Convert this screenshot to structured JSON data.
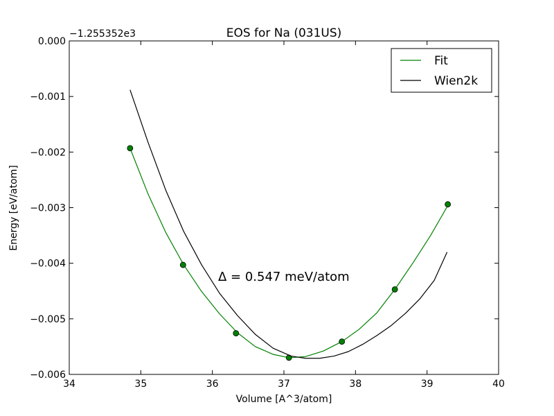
{
  "chart_data": {
    "type": "line",
    "title": "EOS for Na (031US)",
    "xlabel": "Volume [A^3/atom]",
    "ylabel": "Energy [eV/atom]",
    "y_offset_label": "−1.255352e3",
    "annotation": "Δ = 0.547 meV/atom",
    "xlim": [
      34,
      40
    ],
    "ylim": [
      -0.006,
      0.0
    ],
    "x_ticks": [
      "34",
      "35",
      "36",
      "37",
      "38",
      "39",
      "40"
    ],
    "y_ticks": [
      "0.000",
      "−0.001",
      "−0.002",
      "−0.003",
      "−0.004",
      "−0.005",
      "−0.006"
    ],
    "grid": false,
    "legend_position": "top-right",
    "series": [
      {
        "name": "Fit",
        "color": "#008000",
        "style": "line",
        "x": [
          34.85,
          35.1,
          35.35,
          35.6,
          35.85,
          36.1,
          36.35,
          36.6,
          36.85,
          37.07,
          37.3,
          37.55,
          37.81,
          38.05,
          38.3,
          38.55,
          38.8,
          39.05,
          39.3
        ],
        "y": [
          -0.00193,
          -0.00275,
          -0.00345,
          -0.00403,
          -0.00451,
          -0.00491,
          -0.00525,
          -0.0055,
          -0.00564,
          -0.0057,
          -0.00568,
          -0.00558,
          -0.00541,
          -0.00519,
          -0.00489,
          -0.00447,
          -0.004,
          -0.0035,
          -0.00294
        ]
      },
      {
        "name": "",
        "color": "#008000",
        "style": "markers",
        "x": [
          34.85,
          35.59,
          36.33,
          37.07,
          37.81,
          38.55,
          39.29
        ],
        "y": [
          -0.00193,
          -0.00403,
          -0.00526,
          -0.0057,
          -0.00541,
          -0.00447,
          -0.00294
        ]
      },
      {
        "name": "Wien2k",
        "color": "#000000",
        "style": "line",
        "x": [
          34.85,
          35.1,
          35.35,
          35.6,
          35.85,
          36.1,
          36.35,
          36.6,
          36.85,
          37.1,
          37.3,
          37.5,
          37.7,
          37.9,
          38.1,
          38.3,
          38.5,
          38.7,
          38.9,
          39.1,
          39.28
        ],
        "y": [
          -0.00088,
          -0.00182,
          -0.00269,
          -0.00343,
          -0.00403,
          -0.00454,
          -0.00494,
          -0.00528,
          -0.00553,
          -0.00567,
          -0.00571,
          -0.00571,
          -0.00567,
          -0.00559,
          -0.00546,
          -0.0053,
          -0.00512,
          -0.0049,
          -0.00464,
          -0.00431,
          -0.0038
        ]
      }
    ]
  }
}
